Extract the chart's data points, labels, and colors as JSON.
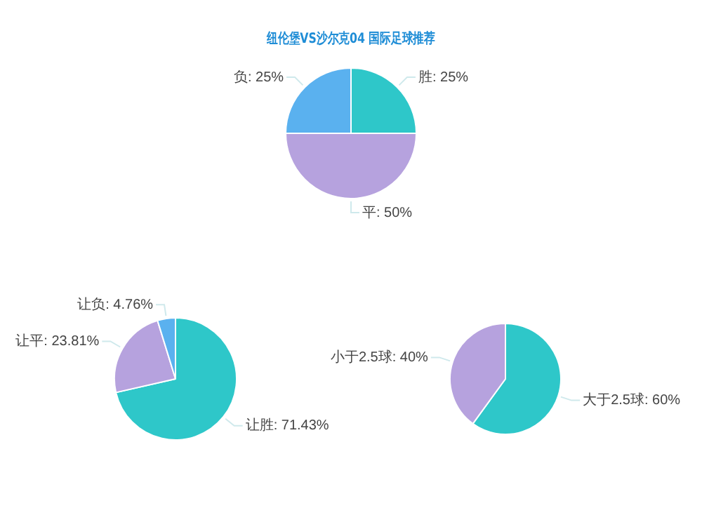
{
  "chart_data": [
    {
      "type": "pie",
      "title": "纽伦堡VS沙尔克04 国际足球推荐",
      "categories": [
        "胜",
        "平",
        "负"
      ],
      "values": [
        25,
        50,
        25
      ],
      "colors": [
        "#2ec7c9",
        "#b6a2de",
        "#5ab1ef"
      ],
      "value_labels": [
        "25%",
        "50%",
        "25%"
      ],
      "legend": false
    },
    {
      "type": "pie",
      "categories": [
        "让胜",
        "让平",
        "让负"
      ],
      "values": [
        71.43,
        23.81,
        4.76
      ],
      "colors": [
        "#2ec7c9",
        "#b6a2de",
        "#5ab1ef"
      ],
      "value_labels": [
        "71.43%",
        "23.81%",
        "4.76%"
      ],
      "legend": false
    },
    {
      "type": "pie",
      "categories": [
        "大于2.5球",
        "小于2.5球"
      ],
      "values": [
        60,
        40
      ],
      "colors": [
        "#2ec7c9",
        "#b6a2de"
      ],
      "value_labels": [
        "60%",
        "40%"
      ],
      "legend": false
    }
  ]
}
